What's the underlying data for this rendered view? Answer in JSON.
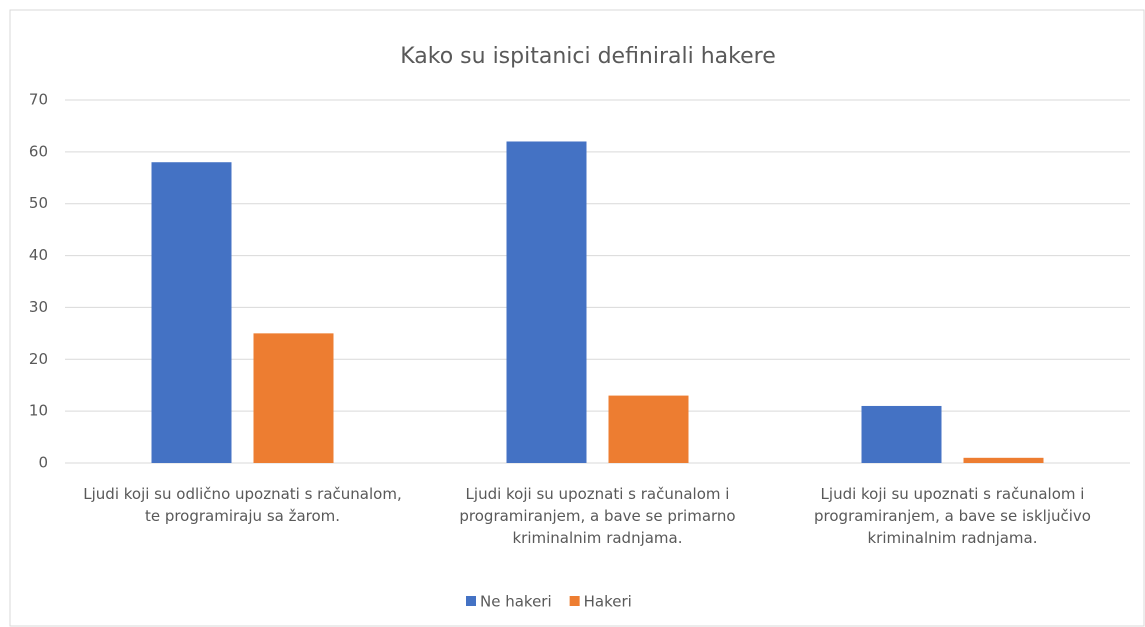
{
  "chart_data": {
    "type": "bar",
    "title": "Kako su ispitanici definirali hakere",
    "categories": [
      "Ljudi koji su odlično upoznati s računalom, te programiraju sa žarom.",
      "Ljudi koji su upoznati s računalom i programiranjem, a bave se primarno kriminalnim radnjama.",
      "Ljudi koji su upoznati s računalom i programiranjem, a bave se isključivo kriminalnim radnjama."
    ],
    "series": [
      {
        "name": "Ne hakeri",
        "color": "#4472c4",
        "values": [
          58,
          62,
          11
        ]
      },
      {
        "name": "Hakeri",
        "color": "#ed7d31",
        "values": [
          25,
          13,
          1
        ]
      }
    ],
    "ylim": [
      0,
      70
    ],
    "yticks": [
      0,
      10,
      20,
      30,
      40,
      50,
      60,
      70
    ],
    "grid": true,
    "legend": "bottom"
  }
}
